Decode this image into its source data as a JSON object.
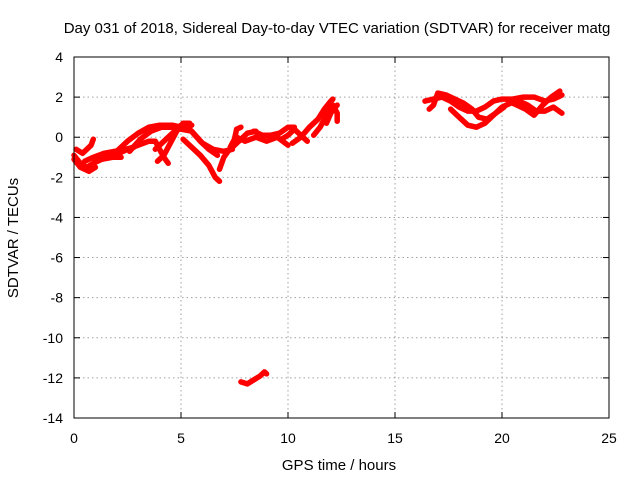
{
  "chart_data": {
    "type": "scatter",
    "title": "Day 031 of 2018, Sidereal Day-to-day VTEC variation (SDTVAR) for receiver matg",
    "xlabel": "GPS time / hours",
    "ylabel": "SDTVAR / TECUs",
    "xlim": [
      0,
      25
    ],
    "ylim": [
      -14,
      4
    ],
    "xticks": [
      "0",
      "5",
      "10",
      "15",
      "20",
      "25"
    ],
    "yticks": [
      "4",
      "2",
      "0",
      "-2",
      "-4",
      "-6",
      "-8",
      "-10",
      "-12",
      "-14"
    ],
    "grid": true,
    "marker_color": "#ff0000",
    "series": [
      {
        "tracks": [
          [
            [
              0.0,
              -0.9
            ],
            [
              0.3,
              -1.3
            ],
            [
              0.6,
              -1.5
            ],
            [
              0.9,
              -1.3
            ],
            [
              1.3,
              -1.1
            ],
            [
              1.8,
              -1.0
            ],
            [
              2.2,
              -1.0
            ]
          ],
          [
            [
              0.0,
              -1.1
            ],
            [
              0.3,
              -1.5
            ],
            [
              0.7,
              -1.7
            ],
            [
              1.0,
              -1.5
            ]
          ],
          [
            [
              0.1,
              -0.6
            ],
            [
              0.4,
              -0.8
            ],
            [
              0.8,
              -0.4
            ],
            [
              0.9,
              -0.1
            ]
          ],
          [
            [
              0.5,
              -1.2
            ],
            [
              0.9,
              -1.0
            ],
            [
              1.4,
              -0.8
            ],
            [
              1.9,
              -0.7
            ],
            [
              2.4,
              -0.6
            ],
            [
              2.8,
              -0.5
            ]
          ],
          [
            [
              1.0,
              -1.2
            ],
            [
              1.5,
              -1.0
            ],
            [
              2.0,
              -0.7
            ],
            [
              2.5,
              -0.2
            ],
            [
              3.0,
              0.2
            ],
            [
              3.5,
              0.5
            ],
            [
              4.0,
              0.6
            ],
            [
              4.6,
              0.6
            ],
            [
              5.0,
              0.5
            ],
            [
              5.4,
              0.4
            ],
            [
              5.9,
              -0.2
            ],
            [
              6.3,
              -0.6
            ],
            [
              6.7,
              -0.9
            ]
          ],
          [
            [
              1.9,
              -0.9
            ],
            [
              2.5,
              -0.6
            ],
            [
              3.0,
              -0.4
            ],
            [
              3.5,
              -0.2
            ],
            [
              3.8,
              -0.2
            ],
            [
              4.0,
              -0.6
            ],
            [
              4.2,
              -1.0
            ],
            [
              4.4,
              -1.3
            ]
          ],
          [
            [
              2.6,
              -0.7
            ],
            [
              3.1,
              -0.1
            ],
            [
              3.6,
              0.3
            ],
            [
              4.1,
              0.5
            ],
            [
              4.6,
              0.5
            ],
            [
              5.0,
              0.4
            ]
          ],
          [
            [
              3.8,
              -0.6
            ],
            [
              4.2,
              -0.2
            ],
            [
              4.6,
              0.2
            ],
            [
              5.0,
              0.6
            ],
            [
              5.2,
              0.7
            ],
            [
              5.5,
              0.6
            ]
          ],
          [
            [
              3.9,
              -1.2
            ],
            [
              4.2,
              -0.9
            ],
            [
              4.5,
              -0.3
            ],
            [
              4.8,
              0.3
            ],
            [
              5.1,
              0.7
            ],
            [
              5.4,
              0.7
            ]
          ],
          [
            [
              5.1,
              -0.1
            ],
            [
              5.5,
              -0.5
            ],
            [
              5.9,
              -0.9
            ],
            [
              6.3,
              -1.4
            ],
            [
              6.6,
              -2.0
            ],
            [
              6.8,
              -2.2
            ]
          ],
          [
            [
              5.0,
              0.4
            ],
            [
              5.5,
              0.3
            ],
            [
              6.0,
              -0.3
            ],
            [
              6.5,
              -0.6
            ],
            [
              7.0,
              -0.7
            ],
            [
              7.4,
              -0.6
            ]
          ],
          [
            [
              6.8,
              -1.6
            ],
            [
              7.0,
              -1.0
            ],
            [
              7.2,
              -0.7
            ],
            [
              7.5,
              -0.4
            ],
            [
              7.8,
              -0.1
            ],
            [
              8.1,
              0.2
            ],
            [
              8.5,
              0.3
            ]
          ],
          [
            [
              7.3,
              -0.5
            ],
            [
              7.5,
              -0.1
            ],
            [
              7.6,
              0.4
            ],
            [
              7.8,
              0.5
            ]
          ],
          [
            [
              7.6,
              0.0
            ],
            [
              8.0,
              -0.2
            ],
            [
              8.5,
              0.0
            ],
            [
              9.0,
              -0.2
            ],
            [
              9.5,
              0.0
            ],
            [
              10.0,
              -0.4
            ]
          ],
          [
            [
              8.4,
              0.3
            ],
            [
              8.8,
              0.1
            ],
            [
              9.2,
              0.1
            ],
            [
              9.6,
              0.2
            ],
            [
              10.0,
              0.5
            ],
            [
              10.3,
              0.5
            ]
          ],
          [
            [
              9.7,
              -0.1
            ],
            [
              10.0,
              0.1
            ],
            [
              10.3,
              0.4
            ],
            [
              10.6,
              0.1
            ],
            [
              10.9,
              -0.2
            ]
          ],
          [
            [
              10.2,
              -0.3
            ],
            [
              10.6,
              0.0
            ],
            [
              11.0,
              0.5
            ],
            [
              11.4,
              0.9
            ],
            [
              11.7,
              1.4
            ],
            [
              12.0,
              1.8
            ],
            [
              12.1,
              1.9
            ]
          ],
          [
            [
              11.2,
              0.1
            ],
            [
              11.5,
              0.5
            ],
            [
              11.8,
              1.1
            ],
            [
              12.1,
              1.6
            ],
            [
              12.3,
              1.2
            ],
            [
              12.3,
              0.8
            ]
          ],
          [
            [
              11.8,
              0.7
            ],
            [
              12.0,
              1.2
            ],
            [
              12.2,
              1.5
            ],
            [
              12.3,
              1.6
            ]
          ],
          [
            [
              16.4,
              1.8
            ],
            [
              16.8,
              1.9
            ],
            [
              17.2,
              2.0
            ],
            [
              17.6,
              1.8
            ],
            [
              18.0,
              1.5
            ],
            [
              18.4,
              1.3
            ],
            [
              18.8,
              1.3
            ],
            [
              19.2,
              1.5
            ],
            [
              19.6,
              1.8
            ],
            [
              20.0,
              1.9
            ],
            [
              20.5,
              1.9
            ],
            [
              21.0,
              2.0
            ],
            [
              21.5,
              2.0
            ],
            [
              22.0,
              1.8
            ],
            [
              22.4,
              1.9
            ],
            [
              22.8,
              2.1
            ]
          ],
          [
            [
              16.6,
              1.4
            ],
            [
              16.8,
              1.6
            ],
            [
              17.0,
              2.2
            ],
            [
              17.4,
              2.1
            ],
            [
              17.8,
              1.9
            ],
            [
              18.2,
              1.7
            ],
            [
              18.6,
              1.4
            ],
            [
              18.9,
              1.0
            ],
            [
              19.3,
              0.9
            ],
            [
              19.7,
              1.2
            ],
            [
              20.1,
              1.5
            ]
          ],
          [
            [
              17.6,
              1.4
            ],
            [
              18.0,
              1.0
            ],
            [
              18.4,
              0.6
            ],
            [
              18.8,
              0.5
            ],
            [
              19.2,
              0.7
            ],
            [
              19.6,
              1.1
            ],
            [
              20.0,
              1.5
            ],
            [
              20.4,
              1.7
            ],
            [
              20.8,
              1.8
            ],
            [
              21.2,
              1.6
            ],
            [
              21.6,
              1.3
            ],
            [
              22.0,
              1.3
            ],
            [
              22.4,
              1.5
            ],
            [
              22.8,
              1.2
            ]
          ],
          [
            [
              20.3,
              1.8
            ],
            [
              20.7,
              1.6
            ],
            [
              21.1,
              1.4
            ],
            [
              21.5,
              1.1
            ],
            [
              21.9,
              1.6
            ],
            [
              22.3,
              2.0
            ],
            [
              22.7,
              2.3
            ]
          ],
          [
            [
              7.8,
              -12.2
            ],
            [
              8.1,
              -12.3
            ],
            [
              8.4,
              -12.1
            ],
            [
              8.7,
              -11.9
            ],
            [
              8.9,
              -11.7
            ],
            [
              9.0,
              -11.8
            ]
          ]
        ]
      }
    ]
  }
}
